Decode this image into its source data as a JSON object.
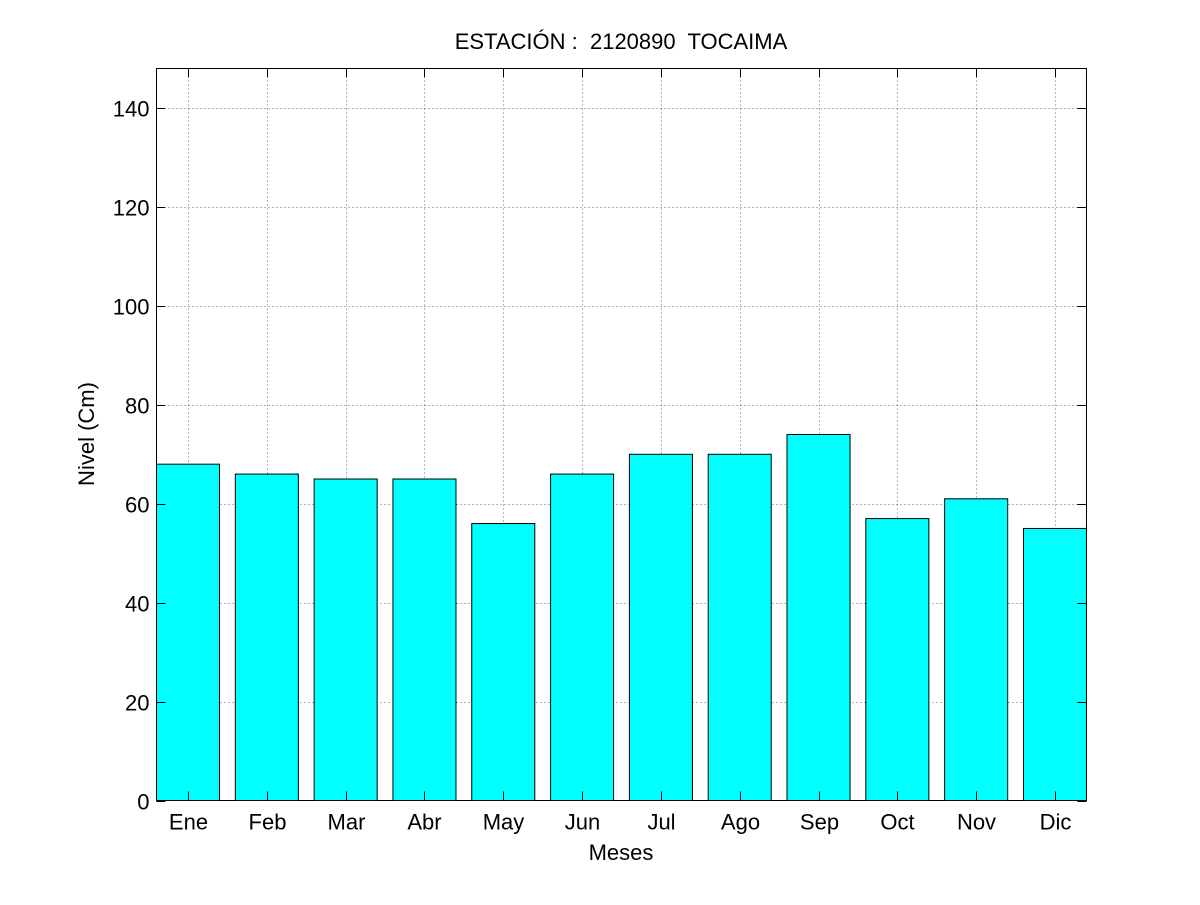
{
  "chart_data": {
    "type": "bar",
    "title": "ESTACIÓN :  2120890  TOCAIMA",
    "xlabel": "Meses",
    "ylabel": "Nivel (Cm)",
    "categories": [
      "Ene",
      "Feb",
      "Mar",
      "Abr",
      "May",
      "Jun",
      "Jul",
      "Ago",
      "Sep",
      "Oct",
      "Nov",
      "Dic"
    ],
    "values": [
      68,
      66,
      65,
      65,
      56,
      66,
      70,
      70,
      74,
      57,
      61,
      55
    ],
    "ylim": [
      0,
      148
    ],
    "xlim": [
      0.6,
      12.4
    ],
    "yticks": [
      0,
      20,
      40,
      60,
      80,
      100,
      120,
      140
    ],
    "grid": true,
    "legend": "none",
    "bar_color": "#00FFFF",
    "edge_color": "#000000"
  }
}
